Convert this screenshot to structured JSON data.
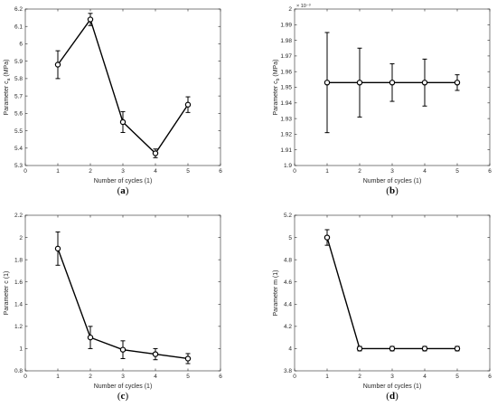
{
  "chart_data": [
    {
      "type": "line",
      "panel_label": "a",
      "xlabel": "Number of cycles (1)",
      "ylabel": "Parameter c_a (MPa)",
      "ylabel_main": "Parameter c",
      "ylabel_sub": "a",
      "ylabel_unit": "(MPa)",
      "xlim": [
        0,
        6
      ],
      "ylim": [
        5.3,
        6.2
      ],
      "xticks": [
        0,
        1,
        2,
        3,
        4,
        5,
        6
      ],
      "yticks": [
        5.3,
        5.4,
        5.5,
        5.6,
        5.7,
        5.8,
        5.9,
        6,
        6.1,
        6.2
      ],
      "ytick_labels": [
        "5.3",
        "5.4",
        "5.5",
        "5.6",
        "5.7",
        "5.8",
        "5.9",
        "6",
        "6.1",
        "6.2"
      ],
      "exponent_label": "",
      "grid": false,
      "x": [
        1,
        2,
        3,
        4,
        5
      ],
      "y": [
        5.88,
        6.14,
        5.55,
        5.37,
        5.65
      ],
      "err": [
        0.08,
        0.035,
        0.06,
        0.025,
        0.045
      ]
    },
    {
      "type": "line",
      "panel_label": "b",
      "xlabel": "Number of cycles (1)",
      "ylabel": "Parameter c_b (MPa)",
      "ylabel_main": "Parameter c",
      "ylabel_sub": "b",
      "ylabel_unit": "(MPa)",
      "xlim": [
        0,
        6
      ],
      "ylim": [
        1.9,
        2.0
      ],
      "xticks": [
        0,
        1,
        2,
        3,
        4,
        5,
        6
      ],
      "yticks": [
        1.9,
        1.91,
        1.92,
        1.93,
        1.94,
        1.95,
        1.96,
        1.97,
        1.98,
        1.99,
        2.0
      ],
      "ytick_labels": [
        "1.9",
        "1.91",
        "1.92",
        "1.93",
        "1.94",
        "1.95",
        "1.96",
        "1.97",
        "1.98",
        "1.99",
        "2"
      ],
      "exponent_label": "× 10⁻³",
      "grid": false,
      "x": [
        1,
        2,
        3,
        4,
        5
      ],
      "y": [
        1.953,
        1.953,
        1.953,
        1.953,
        1.953
      ],
      "err": [
        0.032,
        0.022,
        0.012,
        0.015,
        0.005
      ]
    },
    {
      "type": "line",
      "panel_label": "c",
      "xlabel": "Number of cycles (1)",
      "ylabel": "Parameter c (1)",
      "ylabel_main": "Parameter c (1)",
      "ylabel_sub": "",
      "ylabel_unit": "",
      "xlim": [
        0,
        6
      ],
      "ylim": [
        0.8,
        2.2
      ],
      "xticks": [
        0,
        1,
        2,
        3,
        4,
        5,
        6
      ],
      "yticks": [
        0.8,
        1.0,
        1.2,
        1.4,
        1.6,
        1.8,
        2.0,
        2.2
      ],
      "ytick_labels": [
        "0.8",
        "1",
        "1.2",
        "1.4",
        "1.6",
        "1.8",
        "2",
        "2.2"
      ],
      "exponent_label": "",
      "grid": false,
      "x": [
        1,
        2,
        3,
        4,
        5
      ],
      "y": [
        1.9,
        1.1,
        0.99,
        0.95,
        0.91
      ],
      "err": [
        0.15,
        0.1,
        0.08,
        0.05,
        0.045
      ]
    },
    {
      "type": "line",
      "panel_label": "d",
      "xlabel": "Number of cycles (1)",
      "ylabel": "Parameter m (1)",
      "ylabel_main": "Parameter m (1)",
      "ylabel_sub": "",
      "ylabel_unit": "",
      "xlim": [
        0,
        6
      ],
      "ylim": [
        3.8,
        5.2
      ],
      "xticks": [
        0,
        1,
        2,
        3,
        4,
        5,
        6
      ],
      "yticks": [
        3.8,
        4.0,
        4.2,
        4.4,
        4.6,
        4.8,
        5.0,
        5.2
      ],
      "ytick_labels": [
        "3.8",
        "4",
        "4.2",
        "4.4",
        "4.6",
        "4.8",
        "5",
        "5.2"
      ],
      "exponent_label": "",
      "grid": false,
      "x": [
        1,
        2,
        3,
        4,
        5
      ],
      "y": [
        5.0,
        4.0,
        4.0,
        4.0,
        4.0
      ],
      "err": [
        0.07,
        0.02,
        0.02,
        0.02,
        0.02
      ]
    }
  ],
  "colors": {
    "line": "#000000",
    "axis": "#262626",
    "marker_face": "#ffffff"
  }
}
